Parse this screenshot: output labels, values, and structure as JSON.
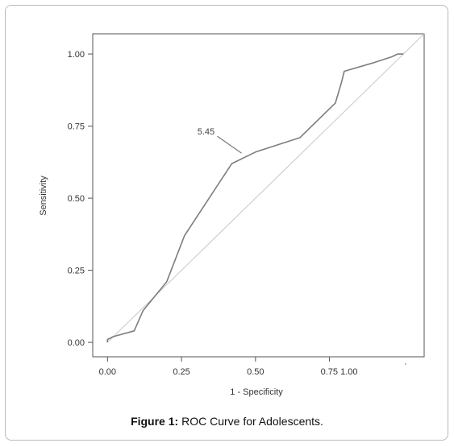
{
  "caption": {
    "label": "Figure 1:",
    "text": "ROC Curve for Adolescents."
  },
  "chart_data": {
    "type": "line",
    "xlabel": "1 - Specificity",
    "ylabel": "Sensitivity",
    "xlim": [
      -0.05,
      1.07
    ],
    "ylim": [
      -0.05,
      1.07
    ],
    "x_ticks": [
      {
        "value": 0.0,
        "label": "0.00"
      },
      {
        "value": 0.25,
        "label": "0.25"
      },
      {
        "value": 0.5,
        "label": "0.50"
      },
      {
        "value": 0.75,
        "label": "0.75 1.00"
      }
    ],
    "y_ticks": [
      {
        "value": 0.0,
        "label": "0.00"
      },
      {
        "value": 0.25,
        "label": "0.25"
      },
      {
        "value": 0.5,
        "label": "0.50"
      },
      {
        "value": 0.75,
        "label": "0.75"
      },
      {
        "value": 1.0,
        "label": "1.00"
      }
    ],
    "series": [
      {
        "x": [
          0.0,
          0.0,
          0.02,
          0.09,
          0.12,
          0.2,
          0.26,
          0.42,
          0.5,
          0.65,
          0.77,
          0.79,
          0.8,
          0.9,
          0.96,
          0.98,
          1.0
        ],
        "y": [
          0.0,
          0.01,
          0.02,
          0.04,
          0.11,
          0.21,
          0.37,
          0.62,
          0.66,
          0.71,
          0.83,
          0.9,
          0.94,
          0.97,
          0.99,
          1.0,
          1.0
        ]
      },
      {
        "x": [
          0.0,
          1.07
        ],
        "y": [
          0.0,
          1.07
        ]
      }
    ],
    "annotations": [
      {
        "text": "5.45",
        "x": 0.42,
        "y": 0.62
      }
    ],
    "grid": false,
    "colors": {
      "curve": "#7d7d7d",
      "reference": "#c8c8c8",
      "axis": "#555555"
    }
  }
}
